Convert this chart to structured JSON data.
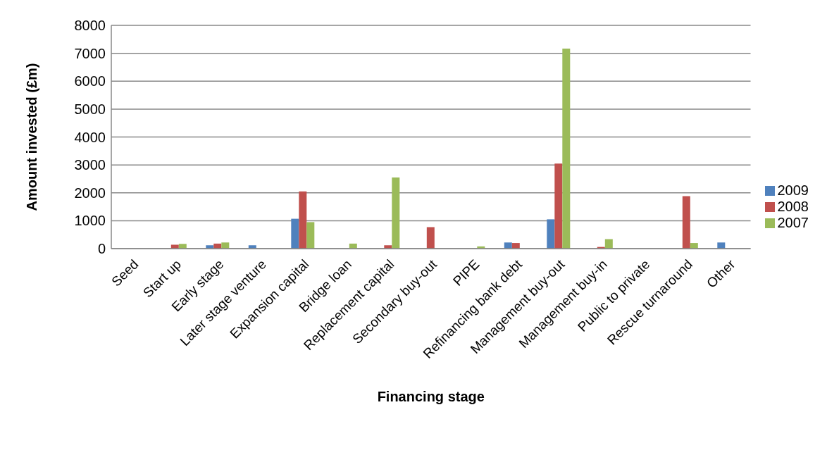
{
  "chart_data": {
    "type": "bar",
    "xlabel": "Financing stage",
    "ylabel": "Amount invested (£m)",
    "categories": [
      "Seed",
      "Start up",
      "Early stage",
      "Later stage venture",
      "Expansion capital",
      "Bridge loan",
      "Replacement capital",
      "Secondary buy-out",
      "PIPE",
      "Refinancing bank debt",
      "Management buy-out",
      "Management buy-in",
      "Public to private",
      "Rescue turnaround",
      "Other"
    ],
    "series": [
      {
        "name": "2009",
        "color": "#4f81bd",
        "values": [
          0,
          0,
          120,
          120,
          1070,
          0,
          0,
          null,
          0,
          220,
          1050,
          0,
          null,
          0,
          220
        ]
      },
      {
        "name": "2008",
        "color": "#c0504d",
        "values": [
          0,
          140,
          180,
          0,
          2050,
          0,
          120,
          770,
          0,
          200,
          3050,
          60,
          0,
          1880,
          0
        ]
      },
      {
        "name": "2007",
        "color": "#9bbb59",
        "values": [
          0,
          170,
          220,
          0,
          950,
          180,
          2550,
          0,
          80,
          null,
          7170,
          340,
          0,
          200,
          0
        ]
      }
    ],
    "ylim": [
      0,
      8000
    ],
    "yticks": [
      0,
      1000,
      2000,
      3000,
      4000,
      5000,
      6000,
      7000,
      8000
    ],
    "grid": "y",
    "legend": "right"
  }
}
